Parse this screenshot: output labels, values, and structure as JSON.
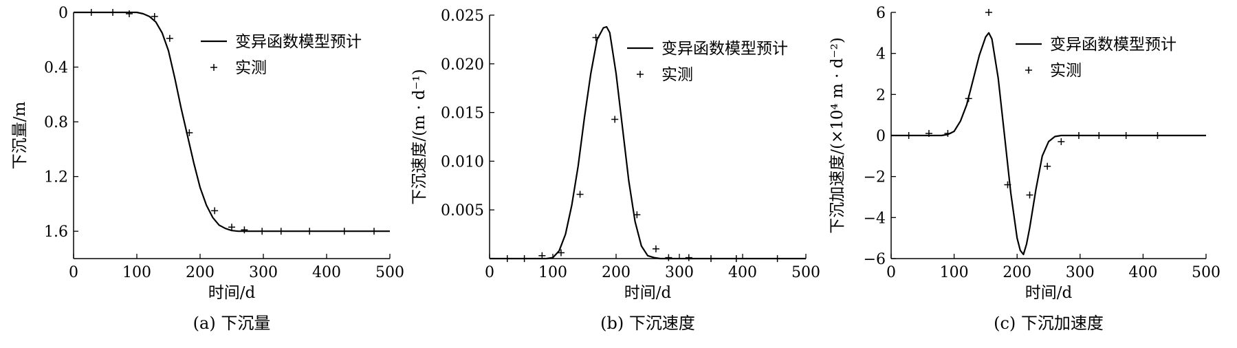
{
  "figure": {
    "colors": {
      "ink": "#000000",
      "background": "#ffffff"
    }
  },
  "chart_data": [
    {
      "type": "line",
      "caption": "(a) 下沉量",
      "xlabel": "时间/d",
      "ylabel": "下沉量/m",
      "xlim": [
        0,
        500
      ],
      "ylim": [
        0,
        1.8
      ],
      "y_inverted": true,
      "xticks": [
        0,
        100,
        200,
        300,
        400,
        500
      ],
      "xtick_labels": [
        "0",
        "100",
        "200",
        "300",
        "400",
        "500"
      ],
      "yticks": [
        0,
        0.4,
        0.8,
        1.2,
        1.6
      ],
      "ytick_labels": [
        "0",
        "0.4",
        "0.8",
        "1.2",
        "1.6"
      ],
      "legend_position": "top-right",
      "grid": false,
      "series": [
        {
          "name": "变异函数模型预计",
          "style": "line",
          "x": [
            0,
            60,
            100,
            110,
            120,
            130,
            140,
            150,
            160,
            170,
            180,
            190,
            200,
            210,
            220,
            230,
            240,
            250,
            260,
            270,
            300,
            400,
            500
          ],
          "values": [
            0,
            0,
            0,
            0.01,
            0.03,
            0.07,
            0.15,
            0.28,
            0.48,
            0.7,
            0.9,
            1.1,
            1.28,
            1.41,
            1.5,
            1.555,
            1.58,
            1.595,
            1.6,
            1.6,
            1.6,
            1.6,
            1.6
          ]
        },
        {
          "name": "实测",
          "style": "marker",
          "x": [
            28,
            62,
            88,
            128,
            152,
            183,
            223,
            250,
            270,
            298,
            328,
            373,
            428,
            475
          ],
          "values": [
            0.0,
            0.0,
            0.01,
            0.03,
            0.19,
            0.88,
            1.45,
            1.57,
            1.59,
            1.6,
            1.6,
            1.6,
            1.6,
            1.6
          ]
        }
      ]
    },
    {
      "type": "line",
      "caption": "(b) 下沉速度",
      "xlabel": "时间/d",
      "ylabel": "下沉速度/(m · d⁻¹)",
      "xlim": [
        0,
        500
      ],
      "ylim": [
        0,
        0.025
      ],
      "y_inverted": false,
      "xticks": [
        0,
        100,
        200,
        300,
        400,
        500
      ],
      "xtick_labels": [
        "0",
        "100",
        "200",
        "300",
        "400",
        "500"
      ],
      "yticks": [
        0.005,
        0.01,
        0.015,
        0.02,
        0.025
      ],
      "ytick_labels": [
        "0.005",
        "0.010",
        "0.015",
        "0.020",
        "0.025"
      ],
      "legend_position": "top-right",
      "grid": false,
      "series": [
        {
          "name": "变异函数模型预计",
          "style": "line",
          "x": [
            0,
            90,
            100,
            110,
            120,
            130,
            140,
            150,
            160,
            170,
            180,
            185,
            190,
            200,
            210,
            220,
            230,
            240,
            250,
            260,
            270,
            280,
            300,
            400,
            500
          ],
          "values": [
            0,
            0,
            0.0001,
            0.0008,
            0.0025,
            0.0055,
            0.0095,
            0.0145,
            0.019,
            0.0225,
            0.0237,
            0.0238,
            0.0232,
            0.019,
            0.0135,
            0.008,
            0.0038,
            0.0013,
            0.0003,
            0.0001,
            0,
            0,
            0,
            0,
            0
          ]
        },
        {
          "name": "实测",
          "style": "marker",
          "x": [
            28,
            55,
            83,
            113,
            143,
            168,
            198,
            233,
            263,
            283,
            315,
            350,
            390,
            455
          ],
          "values": [
            0,
            0,
            0.0003,
            0.0006,
            0.0066,
            0.0227,
            0.0143,
            0.0045,
            0.001,
            0.0001,
            0.0001,
            0,
            0,
            0
          ]
        }
      ]
    },
    {
      "type": "line",
      "caption": "(c) 下沉加速度",
      "xlabel": "时间/d",
      "ylabel": "下沉加速度/(×10⁴ m · d⁻²)",
      "xlim": [
        0,
        500
      ],
      "ylim": [
        -6,
        6
      ],
      "y_inverted": false,
      "xticks": [
        0,
        100,
        200,
        300,
        400,
        500
      ],
      "xtick_labels": [
        "0",
        "100",
        "200",
        "300",
        "400",
        "500"
      ],
      "yticks": [
        -6,
        -4,
        -2,
        0,
        2,
        4,
        6
      ],
      "ytick_labels": [
        "−6",
        "−4",
        "−2",
        "0",
        "2",
        "4",
        "6"
      ],
      "legend_position": "top-right",
      "grid": false,
      "series": [
        {
          "name": "变异函数模型预计",
          "style": "line",
          "x": [
            0,
            80,
            90,
            100,
            110,
            120,
            130,
            140,
            150,
            155,
            160,
            170,
            180,
            190,
            200,
            205,
            210,
            215,
            220,
            230,
            240,
            250,
            260,
            270,
            280,
            300,
            400,
            500
          ],
          "values": [
            0,
            0,
            0.05,
            0.2,
            0.7,
            1.5,
            2.7,
            3.9,
            4.8,
            5.0,
            4.7,
            2.8,
            0,
            -2.8,
            -5.0,
            -5.6,
            -5.8,
            -5.3,
            -4.5,
            -2.6,
            -1.0,
            -0.3,
            -0.05,
            0,
            0,
            0,
            0,
            0
          ]
        },
        {
          "name": "实测",
          "style": "marker",
          "x": [
            28,
            60,
            90,
            123,
            155,
            185,
            220,
            248,
            270,
            298,
            330,
            373,
            423
          ],
          "values": [
            0,
            0.1,
            0.1,
            1.8,
            6.0,
            -2.4,
            -2.9,
            -1.5,
            -0.3,
            0,
            0,
            0,
            0
          ]
        }
      ]
    }
  ]
}
